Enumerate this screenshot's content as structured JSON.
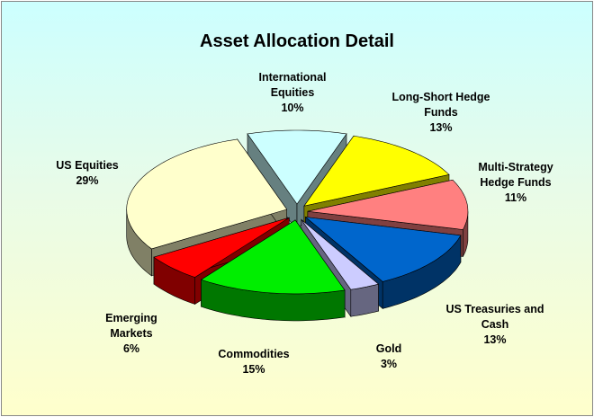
{
  "chart_data": {
    "type": "pie",
    "title": "Asset Allocation Detail",
    "categories": [
      "International Equities",
      "Long-Short Hedge Funds",
      "Multi-Strategy Hedge Funds",
      "US Treasuries and Cash",
      "Gold",
      "Commodities",
      "Emerging Markets",
      "US Equities"
    ],
    "values": [
      10,
      13,
      11,
      13,
      3,
      15,
      6,
      29
    ],
    "value_labels": [
      "10%",
      "13%",
      "11%",
      "13%",
      "3%",
      "15%",
      "6%",
      "29%"
    ],
    "colors": [
      "#ccffff",
      "#ffff00",
      "#ff8080",
      "#0066cc",
      "#ccccff",
      "#00ee00",
      "#ff0000",
      "#ffffcc"
    ]
  }
}
